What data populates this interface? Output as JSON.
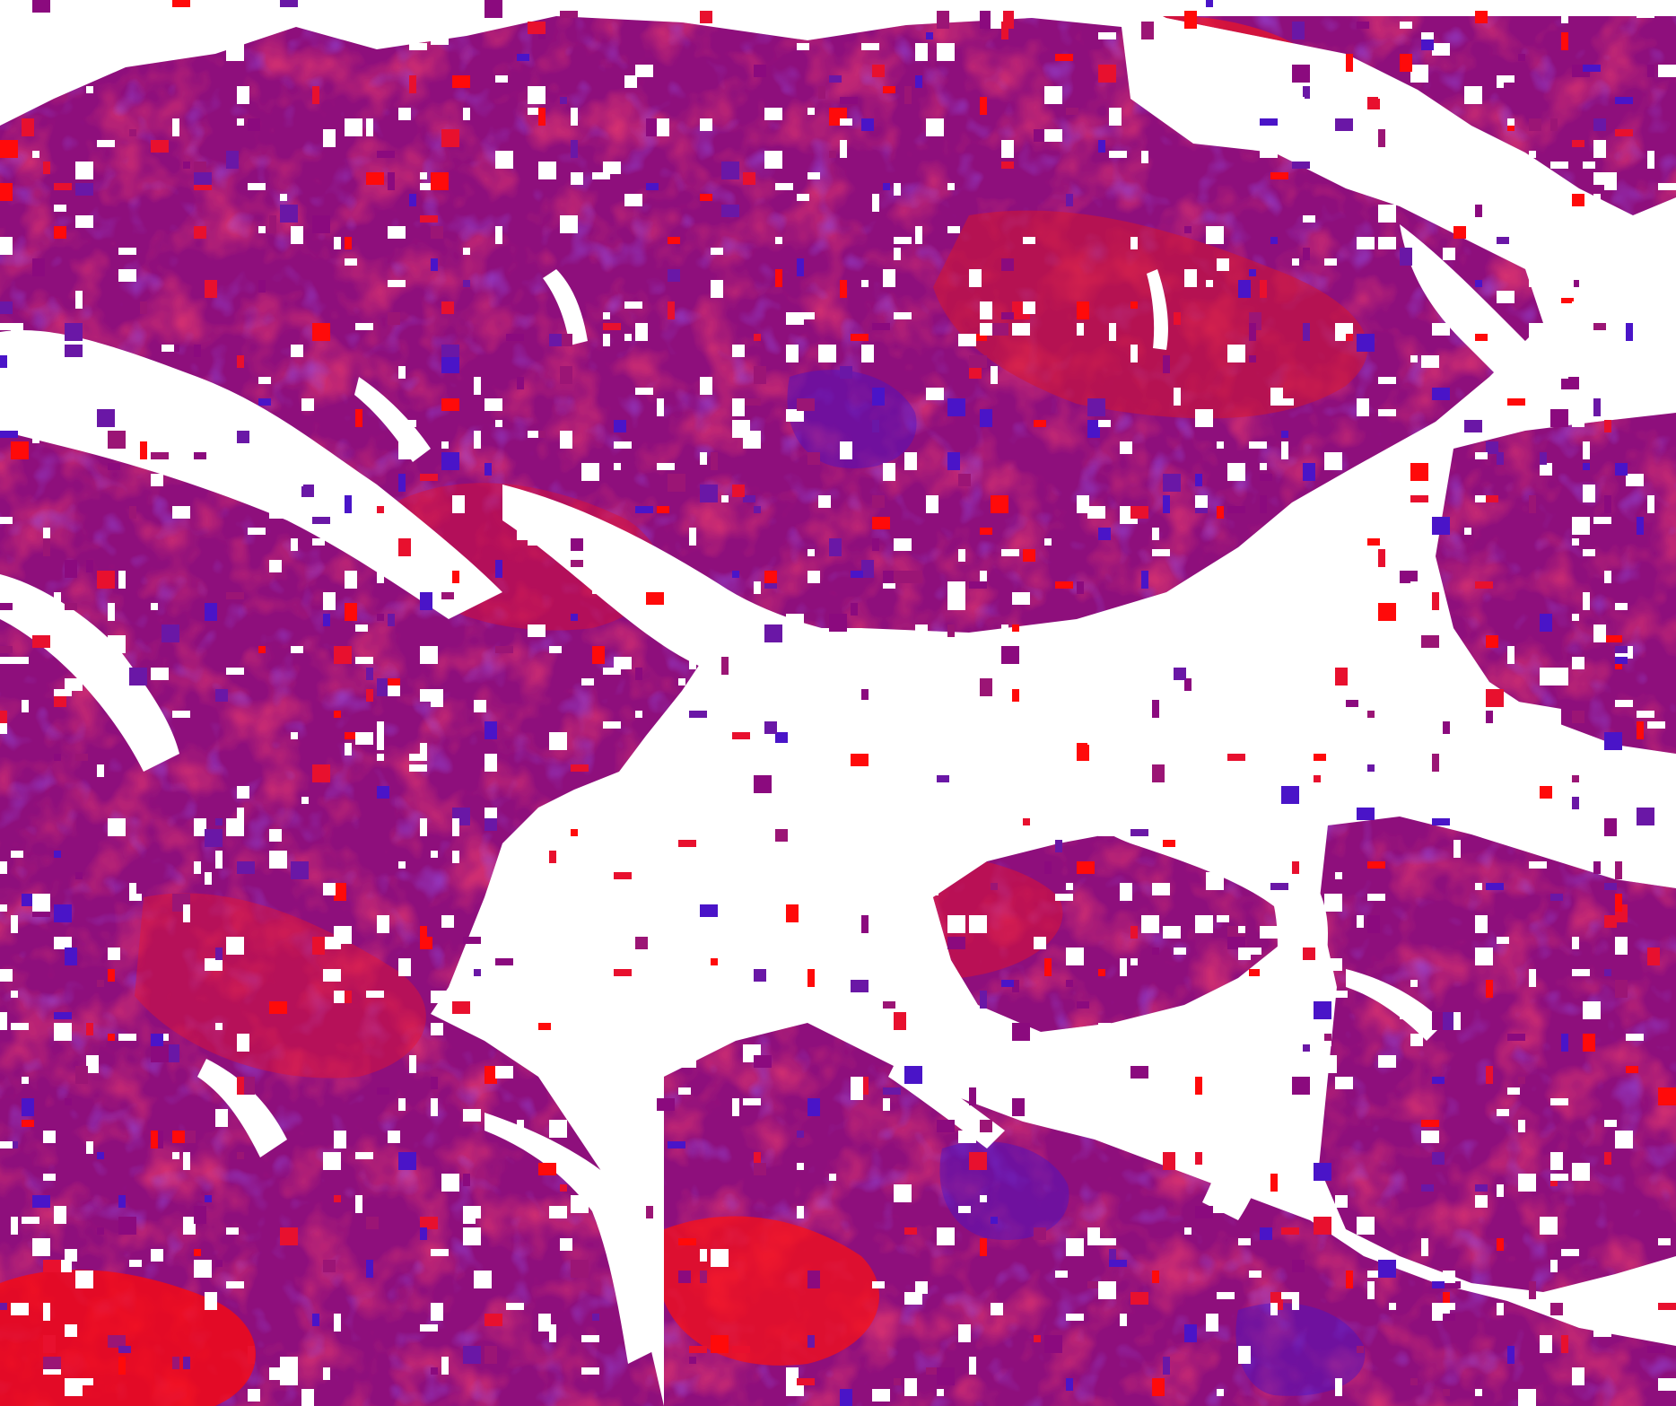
{
  "map": {
    "kind": "classified raster (no labels, legend or axes printed)",
    "palette": {
      "background": "#ffffff",
      "low": "#8b0a7e",
      "mid": "#9b1575",
      "red": "#e8102e",
      "bright_red": "#ff0a0a",
      "blue": "#4a14c8",
      "violet": "#6a17a6"
    },
    "no_data_color": "#ffffff"
  }
}
